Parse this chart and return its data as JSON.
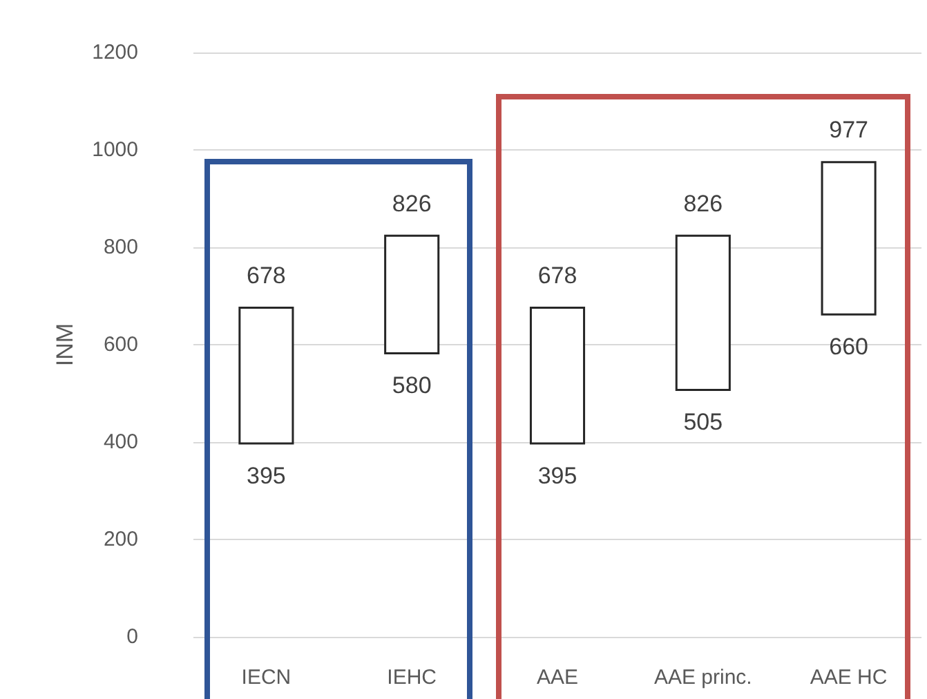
{
  "chart_data": {
    "type": "bar",
    "ylabel": "INM",
    "categories": [
      "IECN",
      "IEHC",
      "AAE",
      "AAE princ.",
      "AAE HC"
    ],
    "base": [
      395,
      580,
      395,
      505,
      660
    ],
    "values": [
      283,
      246,
      283,
      321,
      317
    ],
    "value_labels": [
      "678",
      "826",
      "678",
      "826",
      "977"
    ],
    "color": "#ffffff",
    "annotations": [
      {
        "text": "395",
        "x": "IECN",
        "y": 395
      },
      {
        "text": "580",
        "x": "IEHC",
        "y": 580
      },
      {
        "text": "395",
        "x": "AAE",
        "y": 395
      },
      {
        "text": "505",
        "x": "AAE princ.",
        "y": 505
      },
      {
        "text": "660",
        "x": "AAE HC",
        "y": 660
      }
    ],
    "ylim": [
      0,
      1200
    ],
    "yticks": [
      0,
      200,
      400,
      600,
      800,
      1000,
      1200
    ],
    "grid": "y"
  }
}
